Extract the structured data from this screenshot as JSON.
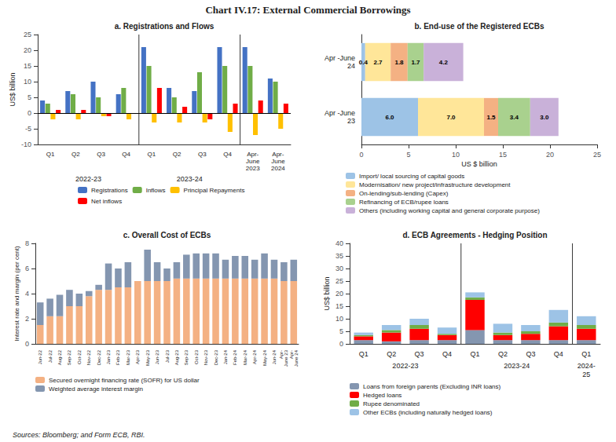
{
  "title": "Chart IV.17: External Commercial Borrowings",
  "annotations": [
    "Sources: Bloomberg; and Form ECB, RBI."
  ],
  "chart_data": [
    {
      "type": "bar",
      "title": "a. Registrations and Flows",
      "ylabel": "US$ billion",
      "categories": [
        "Q1",
        "Q2",
        "Q3",
        "Q4",
        "Q1",
        "Q2",
        "Q3",
        "Q4",
        "Apr-\nJune\n2023",
        "Apr-\nJune\n2024"
      ],
      "series": [
        {
          "name": "Registrations",
          "color": "#4472C4",
          "values": [
            4,
            7,
            10,
            6,
            21,
            8,
            7,
            21,
            21,
            11
          ]
        },
        {
          "name": "Inflows",
          "color": "#70AD47",
          "values": [
            3,
            6,
            5,
            8,
            15,
            5,
            13,
            15,
            15,
            10
          ]
        },
        {
          "name": "Principal Repayments",
          "color": "#FFC000",
          "values": [
            -2,
            -2,
            -1,
            -2,
            -3,
            -3,
            -3,
            -6,
            -7,
            -5
          ]
        },
        {
          "name": "Net inflows",
          "color": "#FF0000",
          "values": [
            1,
            1,
            -1,
            0,
            8,
            2,
            -2,
            3,
            4,
            3
          ]
        }
      ],
      "ylim": [
        -10,
        25
      ],
      "yticks": [
        -10,
        -5,
        0,
        5,
        10,
        15,
        20,
        25
      ],
      "grid": false,
      "legend": "bottom",
      "annotations": [
        "2022-23",
        "2023-24"
      ]
    },
    {
      "type": "bar",
      "orientation": "horizontal",
      "stacked": true,
      "data_labels": true,
      "title": "b. End-use of the Registered ECBs",
      "xlabel": "US $ billion",
      "categories": [
        "Apr -June\n23",
        "Apr -June\n24"
      ],
      "series": [
        {
          "name": "Import/ local sourcing of capital goods",
          "color": "#9DC3E6",
          "values": [
            6.0,
            0.4
          ],
          "value_labels": [
            "6.0",
            "0.4"
          ]
        },
        {
          "name": "Modernisation/ new project/infrastructure development",
          "color": "#FFE699",
          "values": [
            7.0,
            2.7
          ],
          "value_labels": [
            "7.0",
            "2.7"
          ]
        },
        {
          "name": "On-lending/sub-lending (Capex)",
          "color": "#F4B183",
          "values": [
            1.5,
            1.8
          ],
          "value_labels": [
            "1.5",
            "1.8"
          ]
        },
        {
          "name": "Refinancing of ECB/rupee loans",
          "color": "#A9D18E",
          "values": [
            3.4,
            1.7
          ],
          "value_labels": [
            "3.4",
            "1.7"
          ]
        },
        {
          "name": "Others (including working capital and general corporate purpose)",
          "color": "#C9B1D9",
          "values": [
            3.0,
            4.2
          ],
          "value_labels": [
            "3.0",
            "4.2"
          ]
        }
      ],
      "xlim": [
        0,
        25
      ],
      "xticks": [
        0,
        5,
        10,
        15,
        20,
        25
      ],
      "grid": false,
      "legend": "bottom"
    },
    {
      "type": "bar",
      "stacked": true,
      "title": "c. Overall Cost of ECBs",
      "ylabel": "Interest rate and margin (per cent)",
      "categories": [
        "Jun-22",
        "Jul-22",
        "Aug-22",
        "Sep-22",
        "Oct-22",
        "Nov-22",
        "Dec-22",
        "Jan-23",
        "Feb-23",
        "Mar-23",
        "Apr-23",
        "May-23",
        "Jun-23",
        "Jul-23",
        "Aug-23",
        "Sep-23",
        "Oct-23",
        "Nov-23",
        "Dec-23",
        "Jan-24",
        "Feb-24",
        "Mar-24",
        "Apr-24",
        "May-24",
        "Jun-24",
        "Apr-\nJune 23",
        "Apr-\nJune 24"
      ],
      "series": [
        {
          "name": "Secured overnight financing rate (SOFR) for US dollar",
          "color": "#F4B183",
          "values": [
            1.5,
            2.2,
            2.2,
            3.0,
            3.0,
            3.8,
            4.3,
            4.3,
            4.5,
            4.5,
            5.0,
            5.0,
            5.0,
            5.0,
            5.2,
            5.2,
            5.2,
            5.2,
            5.2,
            5.2,
            5.2,
            5.2,
            5.2,
            5.2,
            5.2,
            5.0,
            5.0
          ]
        },
        {
          "name": "Weighted average interest margin",
          "color": "#8496B0",
          "values": [
            1.8,
            1.4,
            1.7,
            1.3,
            1.0,
            0.4,
            0.4,
            2.1,
            1.5,
            2.0,
            0.0,
            2.5,
            1.5,
            1.0,
            1.3,
            1.9,
            2.0,
            2.0,
            2.0,
            1.5,
            1.8,
            1.8,
            1.5,
            2.0,
            1.5,
            1.5,
            1.7
          ]
        }
      ],
      "ylim": [
        0,
        8
      ],
      "yticks": [
        0,
        2,
        4,
        6,
        8
      ],
      "grid": false,
      "legend": "bottom"
    },
    {
      "type": "bar",
      "stacked": true,
      "title": "d. ECB Agreements - Hedging Position",
      "ylabel": "US$ billion",
      "categories": [
        "Q1",
        "Q2",
        "Q3",
        "Q4",
        "Q1",
        "Q2",
        "Q3",
        "Q4",
        "Q1"
      ],
      "series": [
        {
          "name": "Loans from foreign parents (Excluding INR loans)",
          "color": "#8496B0",
          "values": [
            1.5,
            1.0,
            1.5,
            1.5,
            5.5,
            1.5,
            1.5,
            1.5,
            1.5
          ]
        },
        {
          "name": "Hedged loans",
          "color": "#FF0000",
          "values": [
            1.5,
            3.5,
            4.5,
            2.0,
            12.0,
            2.0,
            2.5,
            5.5,
            4.5
          ]
        },
        {
          "name": "Rupee denominated",
          "color": "#70AD47",
          "values": [
            0.5,
            1.0,
            1.5,
            0.5,
            1.0,
            1.0,
            1.0,
            1.5,
            1.5
          ]
        },
        {
          "name": "Other ECBs (including naturally hedged loans)",
          "color": "#9DC3E6",
          "values": [
            1.0,
            2.0,
            2.5,
            2.5,
            2.0,
            3.5,
            2.5,
            5.0,
            3.5
          ]
        }
      ],
      "ylim": [
        0,
        40
      ],
      "yticks": [
        0,
        5,
        10,
        15,
        20,
        25,
        30,
        35,
        40
      ],
      "grid": false,
      "legend": "bottom",
      "annotations": [
        "2022-23",
        "2023-24",
        "2024-\n25"
      ]
    }
  ]
}
